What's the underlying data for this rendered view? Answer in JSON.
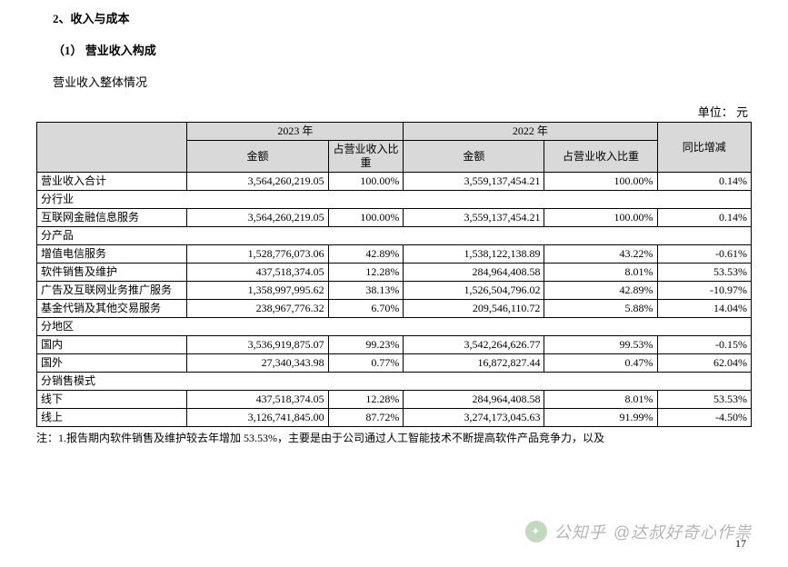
{
  "headings": {
    "section": "2、收入与成本",
    "subsection": "（1） 营业收入构成",
    "desc": "营业收入整体情况",
    "unit": "单位： 元"
  },
  "table": {
    "year1": "2023 年",
    "year2": "2022 年",
    "col_amount": "金额",
    "col_pct": "占营业收入比重",
    "col_pct_short": "占营业收入比重",
    "col_yoy": "同比增减",
    "rows": [
      {
        "type": "data",
        "label": "营业收入合计",
        "a1": "3,564,260,219.05",
        "p1": "100.00%",
        "a2": "3,559,137,454.21",
        "p2": "100.00%",
        "yoy": "0.14%"
      },
      {
        "type": "section",
        "label": "分行业"
      },
      {
        "type": "data",
        "label": "互联网金融信息服务",
        "a1": "3,564,260,219.05",
        "p1": "100.00%",
        "a2": "3,559,137,454.21",
        "p2": "100.00%",
        "yoy": "0.14%"
      },
      {
        "type": "section",
        "label": "分产品"
      },
      {
        "type": "data",
        "label": "增值电信服务",
        "a1": "1,528,776,073.06",
        "p1": "42.89%",
        "a2": "1,538,122,138.89",
        "p2": "43.22%",
        "yoy": "-0.61%"
      },
      {
        "type": "data",
        "label": "软件销售及维护",
        "a1": "437,518,374.05",
        "p1": "12.28%",
        "a2": "284,964,408.58",
        "p2": "8.01%",
        "yoy": "53.53%"
      },
      {
        "type": "data",
        "label": "广告及互联网业务推广服务",
        "a1": "1,358,997,995.62",
        "p1": "38.13%",
        "a2": "1,526,504,796.02",
        "p2": "42.89%",
        "yoy": "-10.97%"
      },
      {
        "type": "data",
        "label": "基金代销及其他交易服务",
        "a1": "238,967,776.32",
        "p1": "6.70%",
        "a2": "209,546,110.72",
        "p2": "5.88%",
        "yoy": "14.04%"
      },
      {
        "type": "section",
        "label": "分地区"
      },
      {
        "type": "data",
        "label": "国内",
        "a1": "3,536,919,875.07",
        "p1": "99.23%",
        "a2": "3,542,264,626.77",
        "p2": "99.53%",
        "yoy": "-0.15%"
      },
      {
        "type": "data",
        "label": "国外",
        "a1": "27,340,343.98",
        "p1": "0.77%",
        "a2": "16,872,827.44",
        "p2": "0.47%",
        "yoy": "62.04%"
      },
      {
        "type": "section",
        "label": "分销售模式"
      },
      {
        "type": "data",
        "label": "线下",
        "a1": "437,518,374.05",
        "p1": "12.28%",
        "a2": "284,964,408.58",
        "p2": "8.01%",
        "yoy": "53.53%"
      },
      {
        "type": "data",
        "label": "线上",
        "a1": "3,126,741,845.00",
        "p1": "87.72%",
        "a2": "3,274,173,045.63",
        "p2": "91.99%",
        "yoy": "-4.50%"
      }
    ]
  },
  "footnote": "注：1.报告期内软件销售及维护较去年增加 53.53%，主要是由于公司通过人工智能技术不断提高软件产品竞争力，以及",
  "watermark": {
    "prefix": "公知乎",
    "account": "@达叔好奇心作祟"
  },
  "pagenum": "17"
}
